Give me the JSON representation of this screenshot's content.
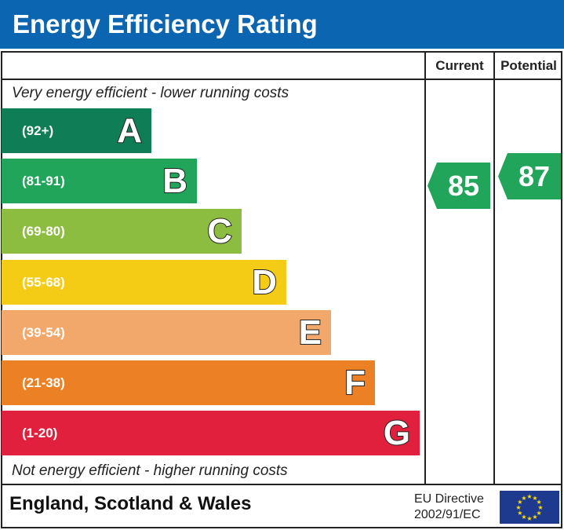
{
  "title": "Energy Efficiency Rating",
  "columns": {
    "current": "Current",
    "potential": "Potential"
  },
  "top_note": "Very energy efficient - lower running costs",
  "bottom_note": "Not energy efficient - higher running costs",
  "chart_data": {
    "type": "bar",
    "bands": [
      {
        "letter": "A",
        "range": "(92+)",
        "color": "#0f7d55"
      },
      {
        "letter": "B",
        "range": "(81-91)",
        "color": "#21a55a"
      },
      {
        "letter": "C",
        "range": "(69-80)",
        "color": "#8dbd40"
      },
      {
        "letter": "D",
        "range": "(55-68)",
        "color": "#f5cc15"
      },
      {
        "letter": "E",
        "range": "(39-54)",
        "color": "#f1a86a"
      },
      {
        "letter": "F",
        "range": "(21-38)",
        "color": "#ec8024"
      },
      {
        "letter": "G",
        "range": "(1-20)",
        "color": "#e0203c"
      }
    ],
    "current": {
      "value": "85",
      "band": "B",
      "color": "#21a55a"
    },
    "potential": {
      "value": "87",
      "band": "B",
      "color": "#21a55a"
    }
  },
  "footer": {
    "region": "England, Scotland & Wales",
    "directive_line1": "EU Directive",
    "directive_line2": "2002/91/EC",
    "flag": "eu-flag-icon"
  }
}
